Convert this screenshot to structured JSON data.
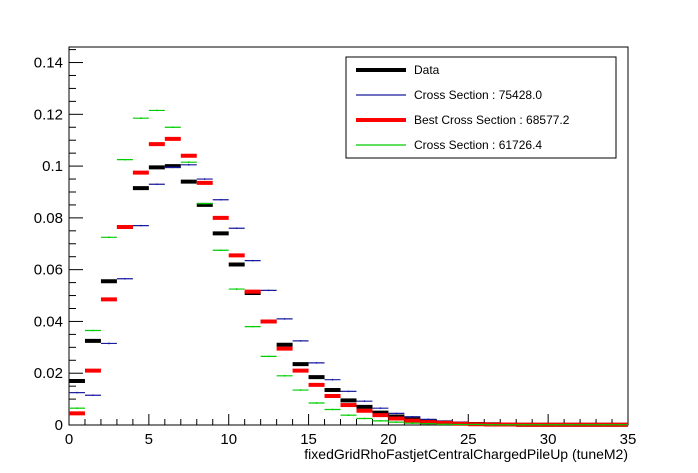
{
  "chart_data": {
    "type": "step",
    "xlabel": "fixedGridRhoFastjetCentralChargedPileUp (tuneM2)",
    "ylabel": "",
    "xlim": [
      0,
      35
    ],
    "ylim": [
      0,
      0.146
    ],
    "x_ticks": [
      0,
      5,
      10,
      15,
      20,
      25,
      30,
      35
    ],
    "x_tick_labels": [
      "0",
      "5",
      "10",
      "15",
      "20",
      "25",
      "30",
      "35"
    ],
    "y_ticks": [
      0,
      0.02,
      0.04,
      0.06,
      0.08,
      0.1,
      0.12,
      0.14
    ],
    "y_tick_labels": [
      "0",
      "0.02",
      "0.04",
      "0.06",
      "0.08",
      "0.1",
      "0.12",
      "0.14"
    ],
    "grid": false,
    "legend_position": "top-right",
    "bin_edges": [
      0,
      1,
      2,
      3,
      4,
      5,
      6,
      7,
      8,
      9,
      10,
      11,
      12,
      13,
      14,
      15,
      16,
      17,
      18,
      19,
      20,
      21,
      22,
      23,
      24,
      25,
      26,
      27,
      28,
      29,
      30,
      31,
      32,
      33,
      34,
      35
    ],
    "series": [
      {
        "name": "Data",
        "color": "#000000",
        "style": "thick",
        "values": [
          0.017,
          0.0325,
          0.0555,
          0.0765,
          0.0915,
          0.0995,
          0.1,
          0.094,
          0.085,
          0.074,
          0.062,
          0.051,
          0.04,
          0.031,
          0.0235,
          0.0185,
          0.0135,
          0.0095,
          0.007,
          0.0048,
          0.0033,
          0.0022,
          0.0015,
          0.001,
          0.0006,
          0.0004,
          0.0003,
          0.0002,
          0.0001,
          0.0001,
          0.0001,
          0.0001,
          0.0001,
          0.0001,
          0.0001
        ]
      },
      {
        "name": "Cross Section : 75428.0",
        "color": "#1a1a9e",
        "style": "thin",
        "values": [
          0.0125,
          0.0115,
          0.0315,
          0.0565,
          0.077,
          0.093,
          0.0995,
          0.1005,
          0.095,
          0.087,
          0.076,
          0.0635,
          0.052,
          0.041,
          0.0325,
          0.024,
          0.0175,
          0.013,
          0.0092,
          0.0065,
          0.0045,
          0.0032,
          0.0022,
          0.0015,
          0.001,
          0.0007,
          0.0005,
          0.0003,
          0.0002,
          0.0002,
          0.0001,
          0.0001,
          0.0001,
          0.0001,
          0.0001
        ]
      },
      {
        "name": "Best Cross Section : 68577.2",
        "color": "#ff0000",
        "style": "thick",
        "values": [
          0.0045,
          0.021,
          0.0485,
          0.0765,
          0.0975,
          0.1085,
          0.1105,
          0.104,
          0.0935,
          0.08,
          0.0655,
          0.0515,
          0.04,
          0.0295,
          0.021,
          0.0155,
          0.0112,
          0.0077,
          0.0055,
          0.0038,
          0.0025,
          0.0017,
          0.0011,
          0.0008,
          0.0005,
          0.0003,
          0.0002,
          0.0002,
          0.0001,
          0.0001,
          0.0001,
          0.0001,
          0.0001,
          0.0001,
          0.0001
        ]
      },
      {
        "name": "Cross Section : 61726.4",
        "color": "#00cc00",
        "style": "thin",
        "values": [
          0.0065,
          0.0365,
          0.0725,
          0.1025,
          0.1185,
          0.1215,
          0.115,
          0.1015,
          0.0855,
          0.0675,
          0.0525,
          0.038,
          0.0265,
          0.019,
          0.0135,
          0.0085,
          0.006,
          0.0038,
          0.0025,
          0.0016,
          0.0011,
          0.0007,
          0.0005,
          0.0003,
          0.0002,
          0.0002,
          0.0001,
          0.0001,
          0.0001,
          0.0001,
          0.0001,
          0.0001,
          0.0001,
          0.0001,
          0.0001
        ]
      }
    ]
  }
}
